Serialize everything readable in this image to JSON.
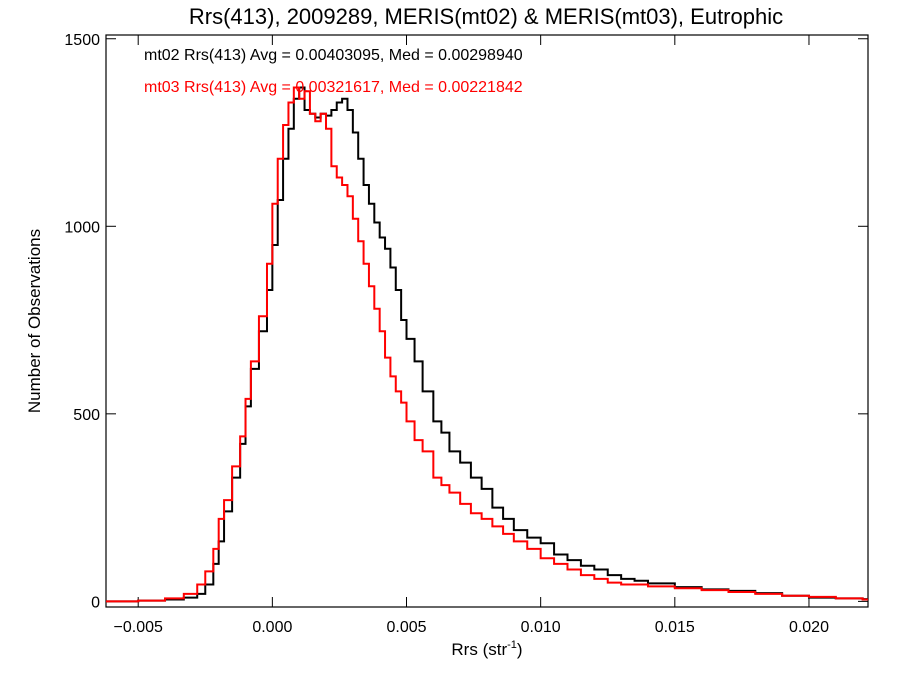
{
  "chart_data": {
    "type": "line",
    "title": "Rrs(413), 2009289, MERIS(mt02) & MERIS(mt03), Eutrophic",
    "xlabel": "Rrs (str",
    "xlabel_sup": "-1",
    "xlabel_close": ")",
    "ylabel": "Number of Observations",
    "xlim": [
      -0.0062,
      0.0222
    ],
    "ylim": [
      -15,
      1510
    ],
    "xticks": [
      -0.005,
      0.0,
      0.005,
      0.01,
      0.015,
      0.02
    ],
    "xtick_labels": [
      "−0.005",
      "0.000",
      "0.005",
      "0.010",
      "0.015",
      "0.020"
    ],
    "yticks": [
      0,
      500,
      1000,
      1500
    ],
    "ytick_labels": [
      "0",
      "500",
      "1000",
      "1500"
    ],
    "grid": false,
    "legend_position": "top-left",
    "series": [
      {
        "name": "mt02 Rrs(413) Avg = 0.00403095, Med = 0.00298940",
        "color": "#000000",
        "step": true,
        "x": [
          -0.0062,
          -0.005,
          -0.004,
          -0.0033,
          -0.0028,
          -0.0025,
          -0.0022,
          -0.002,
          -0.0018,
          -0.0015,
          -0.0012,
          -0.001,
          -0.0008,
          -0.0005,
          -0.0002,
          0.0,
          0.0002,
          0.0004,
          0.0006,
          0.0008,
          0.001,
          0.0012,
          0.0014,
          0.0016,
          0.0018,
          0.002,
          0.0022,
          0.0024,
          0.0026,
          0.0028,
          0.003,
          0.0032,
          0.0034,
          0.0036,
          0.0038,
          0.004,
          0.0042,
          0.0044,
          0.0046,
          0.0048,
          0.005,
          0.0053,
          0.0056,
          0.006,
          0.0063,
          0.0066,
          0.007,
          0.0074,
          0.0078,
          0.0082,
          0.0086,
          0.009,
          0.0095,
          0.01,
          0.0105,
          0.011,
          0.0115,
          0.012,
          0.0125,
          0.013,
          0.0135,
          0.014,
          0.015,
          0.016,
          0.017,
          0.018,
          0.019,
          0.02,
          0.021,
          0.022
        ],
        "values": [
          0,
          2,
          5,
          10,
          20,
          45,
          100,
          160,
          240,
          330,
          420,
          520,
          620,
          720,
          830,
          950,
          1070,
          1180,
          1260,
          1340,
          1370,
          1310,
          1300,
          1290,
          1300,
          1295,
          1310,
          1330,
          1340,
          1310,
          1250,
          1180,
          1110,
          1060,
          1010,
          970,
          940,
          890,
          830,
          750,
          700,
          640,
          560,
          480,
          450,
          400,
          370,
          330,
          300,
          250,
          220,
          190,
          170,
          155,
          125,
          110,
          95,
          85,
          70,
          60,
          55,
          48,
          38,
          32,
          28,
          22,
          15,
          10,
          8,
          6
        ]
      },
      {
        "name": "mt03 Rrs(413) Avg = 0.00321617, Med = 0.00221842",
        "color": "#ff0000",
        "step": true,
        "x": [
          -0.0062,
          -0.005,
          -0.004,
          -0.0033,
          -0.0028,
          -0.0025,
          -0.0022,
          -0.002,
          -0.0018,
          -0.0015,
          -0.0012,
          -0.001,
          -0.0008,
          -0.0005,
          -0.0002,
          0.0,
          0.0002,
          0.0004,
          0.0006,
          0.0008,
          0.001,
          0.0012,
          0.0014,
          0.0016,
          0.0018,
          0.002,
          0.0022,
          0.0024,
          0.0026,
          0.0028,
          0.003,
          0.0032,
          0.0034,
          0.0036,
          0.0038,
          0.004,
          0.0042,
          0.0044,
          0.0046,
          0.0048,
          0.005,
          0.0053,
          0.0056,
          0.006,
          0.0063,
          0.0066,
          0.007,
          0.0074,
          0.0078,
          0.0082,
          0.0086,
          0.009,
          0.0095,
          0.01,
          0.0105,
          0.011,
          0.0115,
          0.012,
          0.0125,
          0.013,
          0.0135,
          0.014,
          0.015,
          0.016,
          0.017,
          0.018,
          0.019,
          0.02,
          0.021,
          0.022
        ],
        "values": [
          0,
          2,
          8,
          20,
          45,
          80,
          140,
          220,
          270,
          360,
          440,
          540,
          640,
          760,
          900,
          1060,
          1180,
          1270,
          1330,
          1370,
          1340,
          1360,
          1300,
          1280,
          1300,
          1260,
          1160,
          1130,
          1110,
          1080,
          1020,
          960,
          900,
          840,
          780,
          720,
          650,
          600,
          560,
          530,
          480,
          430,
          400,
          330,
          310,
          290,
          260,
          235,
          220,
          200,
          180,
          160,
          140,
          115,
          100,
          85,
          70,
          60,
          50,
          45,
          45,
          40,
          35,
          30,
          25,
          20,
          15,
          12,
          8,
          5
        ]
      }
    ]
  }
}
